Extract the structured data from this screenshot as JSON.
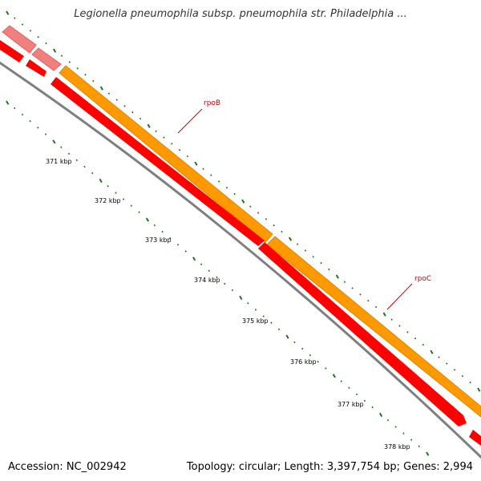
{
  "title": "Legionella pneumophila subsp. pneumophila str. Philadelphia ...",
  "accession": "Accession: NC_002942",
  "topology": "Topology: circular; Length: 3,397,754 bp; Genes: 2,994",
  "genes": [
    {
      "name": "rpoB",
      "color": "#ff9900"
    },
    {
      "name": "rpoC",
      "color": "#ff9900"
    }
  ],
  "ticks": [
    "371 kbp",
    "372 kbp",
    "373 kbp",
    "374 kbp",
    "375 kbp",
    "376 kbp",
    "377 kbp",
    "378 kbp"
  ],
  "colors": {
    "gene": "#ff9900",
    "cds": "#ff0000",
    "cds_light": "#f08080",
    "backbone": "#808080",
    "tick": "#1a7a1a",
    "label": "#cc0000"
  }
}
